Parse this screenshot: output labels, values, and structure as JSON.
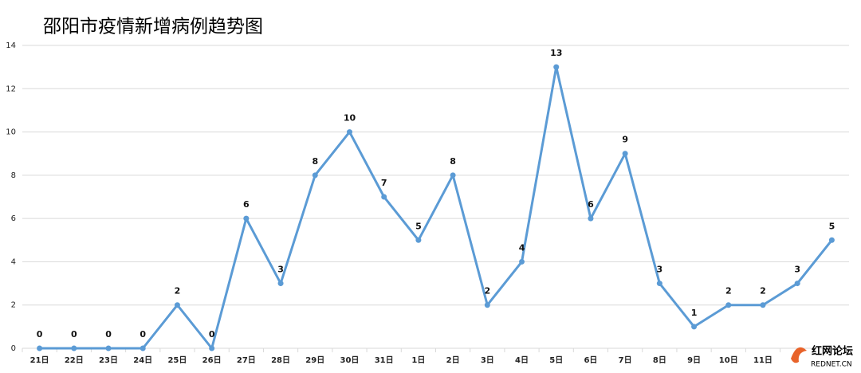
{
  "chart_data": {
    "type": "line",
    "title": "邵阳市疫情新增病例趋势图",
    "categories": [
      "21日",
      "22日",
      "23日",
      "24日",
      "25日",
      "26日",
      "27日",
      "28日",
      "29日",
      "30日",
      "31日",
      "1日",
      "2日",
      "3日",
      "4日",
      "5日",
      "6日",
      "7日",
      "8日",
      "9日",
      "10日",
      "11日",
      null,
      null
    ],
    "series": [
      {
        "name": null,
        "color": "#5b9bd5",
        "values": [
          0,
          0,
          0,
          0,
          2,
          0,
          6,
          3,
          8,
          10,
          7,
          5,
          8,
          2,
          4,
          13,
          6,
          9,
          3,
          1,
          2,
          2,
          3,
          5
        ]
      }
    ],
    "ylim": [
      0,
      14
    ],
    "yticks": [
      0,
      2,
      4,
      6,
      8,
      10,
      12,
      14
    ],
    "grid": true,
    "data_labels": true
  },
  "watermark": {
    "name": "红网论坛",
    "site": "REDNET.CN"
  }
}
